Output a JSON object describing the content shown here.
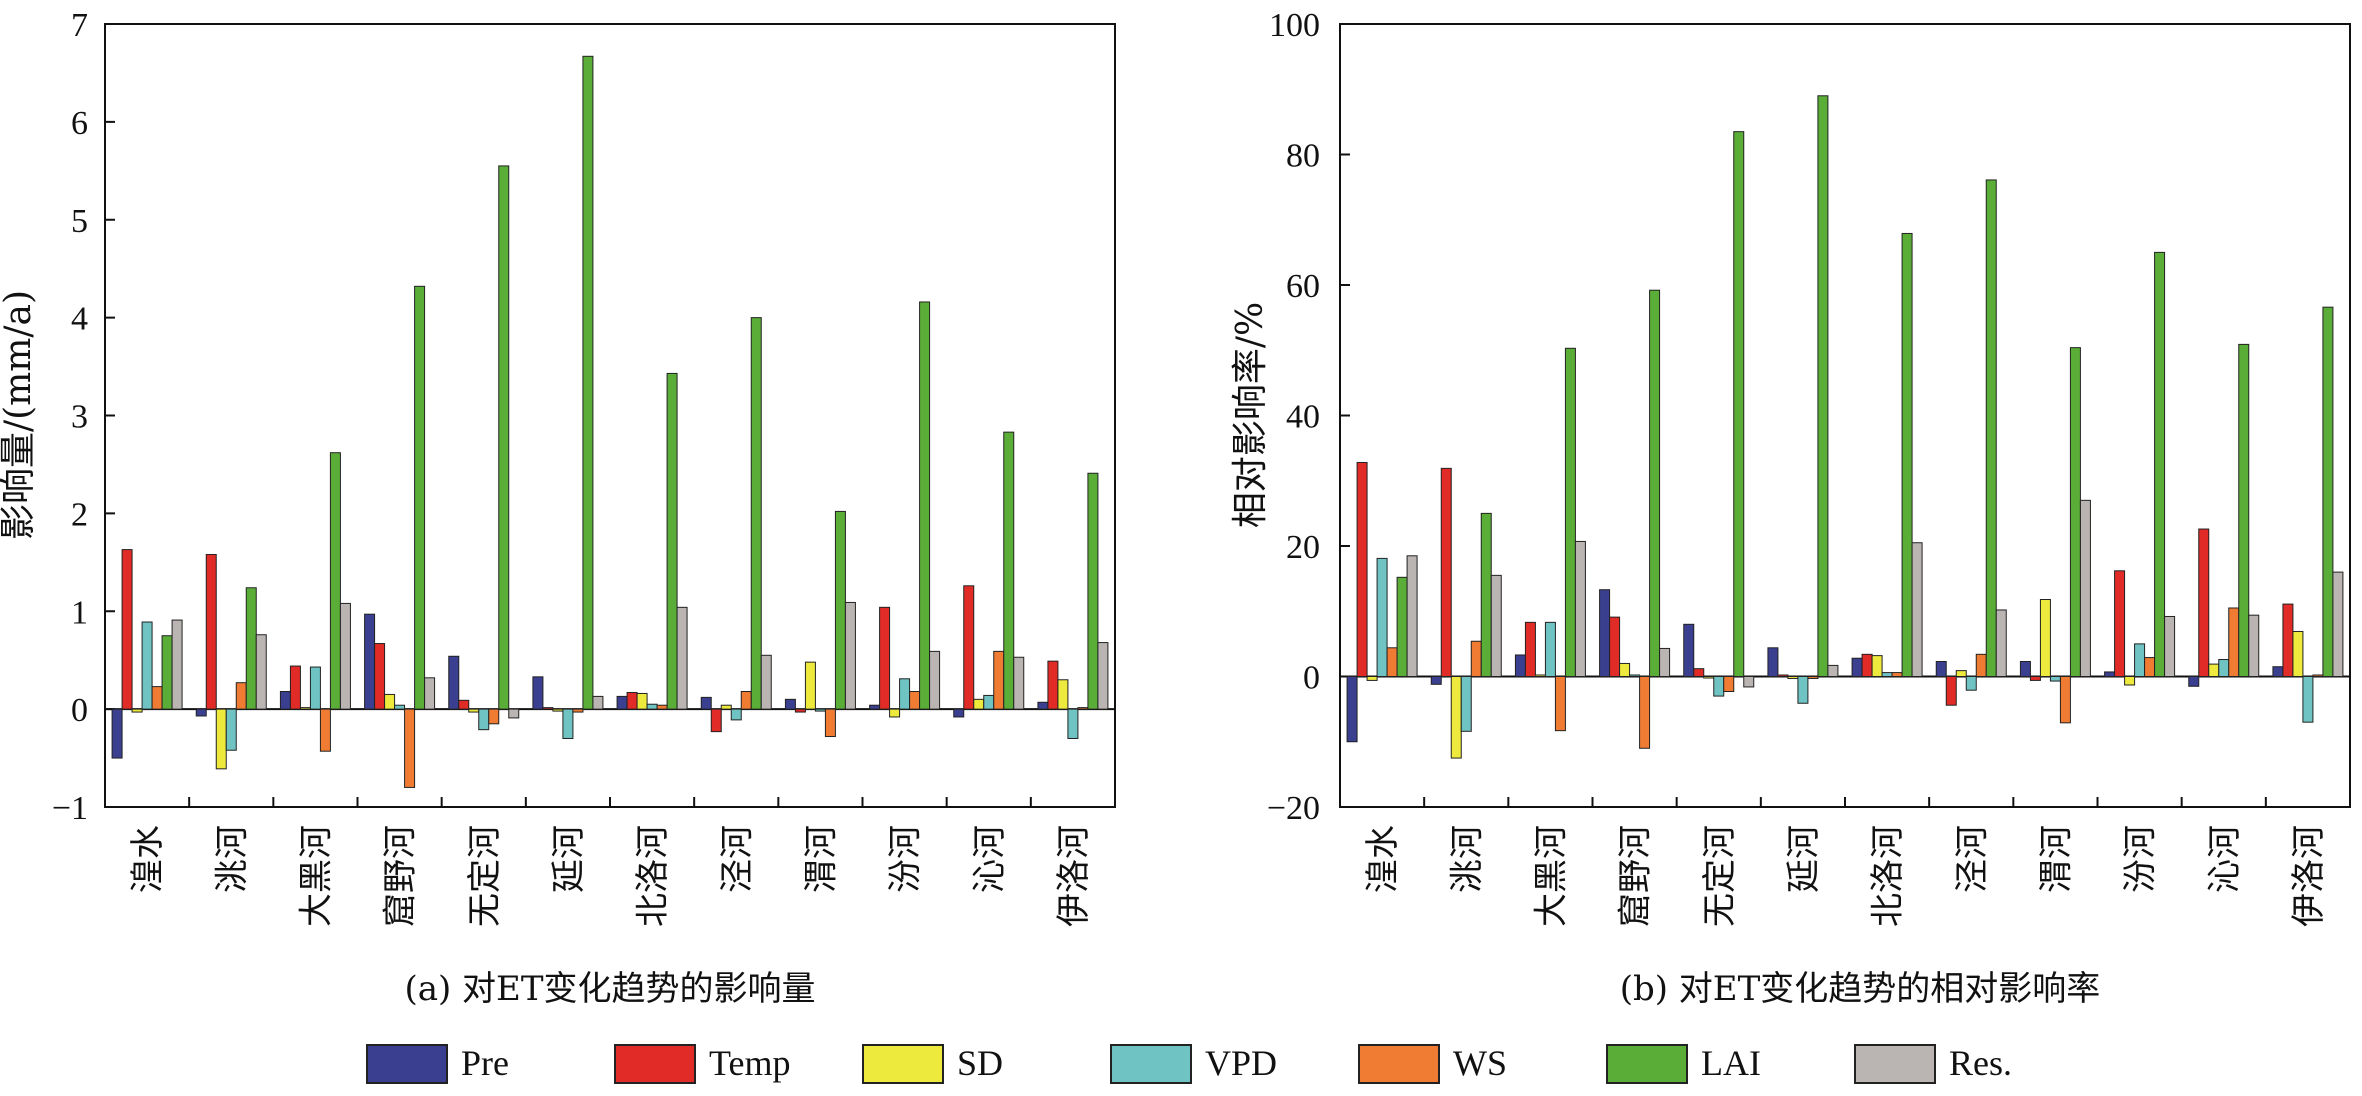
{
  "chart_data": [
    {
      "type": "bar",
      "ylabel": "影响量/(mm/a)",
      "caption": "(a) 对ET变化趋势的影响量",
      "ylim": [
        -1,
        7
      ],
      "yticks": [
        -1,
        0,
        1,
        2,
        3,
        4,
        5,
        6,
        7
      ],
      "categories": [
        "湟水",
        "洮河",
        "大黑河",
        "窟野河",
        "无定河",
        "延河",
        "北洛河",
        "泾河",
        "渭河",
        "汾河",
        "沁河",
        "伊洛河"
      ],
      "series": [
        {
          "name": "Pre",
          "color": "#3a3f8f",
          "values": [
            -0.5,
            -0.07,
            0.18,
            0.97,
            0.54,
            0.33,
            0.13,
            0.12,
            0.1,
            0.04,
            -0.08,
            0.07
          ]
        },
        {
          "name": "Temp",
          "color": "#e02b27",
          "values": [
            1.63,
            1.58,
            0.44,
            0.67,
            0.09,
            0.0,
            0.17,
            -0.23,
            -0.03,
            1.04,
            1.26,
            0.49
          ]
        },
        {
          "name": "SD",
          "color": "#eeea3d",
          "values": [
            -0.03,
            -0.61,
            0.0,
            0.15,
            -0.03,
            -0.02,
            0.16,
            0.04,
            0.48,
            -0.08,
            0.1,
            0.3
          ]
        },
        {
          "name": "VPD",
          "color": "#6fc3c3",
          "values": [
            0.89,
            -0.42,
            0.43,
            0.04,
            -0.21,
            -0.3,
            0.05,
            -0.11,
            -0.02,
            0.31,
            0.14,
            -0.3
          ]
        },
        {
          "name": "WS",
          "color": "#f07c33",
          "values": [
            0.23,
            0.27,
            -0.43,
            -0.8,
            -0.15,
            -0.03,
            0.04,
            0.18,
            -0.28,
            0.18,
            0.59,
            0.0
          ]
        },
        {
          "name": "LAI",
          "color": "#5aad37",
          "values": [
            0.75,
            1.24,
            2.62,
            4.32,
            5.55,
            6.67,
            3.43,
            4.0,
            2.02,
            4.16,
            2.83,
            2.41
          ]
        },
        {
          "name": "Res.",
          "color": "#bab5b3",
          "values": [
            0.91,
            0.76,
            1.08,
            0.32,
            -0.09,
            0.13,
            1.04,
            0.55,
            1.09,
            0.59,
            0.53,
            0.68
          ]
        }
      ]
    },
    {
      "type": "bar",
      "ylabel": "相对影响率/%",
      "caption": "(b) 对ET变化趋势的相对影响率",
      "ylim": [
        -20,
        100
      ],
      "yticks": [
        -20,
        0,
        20,
        40,
        60,
        80,
        100
      ],
      "categories": [
        "湟水",
        "洮河",
        "大黑河",
        "窟野河",
        "无定河",
        "延河",
        "北洛河",
        "泾河",
        "渭河",
        "汾河",
        "沁河",
        "伊洛河"
      ],
      "series": [
        {
          "name": "Pre",
          "color": "#3a3f8f",
          "values": [
            -10,
            -1.2,
            3.3,
            13.3,
            8.0,
            4.4,
            2.8,
            2.3,
            2.3,
            0.7,
            -1.5,
            1.5
          ]
        },
        {
          "name": "Temp",
          "color": "#e02b27",
          "values": [
            32.8,
            31.9,
            8.3,
            9.1,
            1.2,
            0.0,
            3.4,
            -4.4,
            -0.6,
            16.2,
            22.6,
            11.1
          ]
        },
        {
          "name": "SD",
          "color": "#eeea3d",
          "values": [
            -0.6,
            -12.5,
            0.0,
            2.0,
            -0.2,
            -0.3,
            3.2,
            0.9,
            11.8,
            -1.3,
            1.9,
            6.9
          ]
        },
        {
          "name": "VPD",
          "color": "#6fc3c3",
          "values": [
            18.1,
            -8.4,
            8.3,
            0.0,
            -3.0,
            -4.1,
            0.6,
            -2.1,
            -0.7,
            5.0,
            2.6,
            -7.0
          ]
        },
        {
          "name": "WS",
          "color": "#f07c33",
          "values": [
            4.4,
            5.4,
            -8.3,
            -11.0,
            -2.3,
            -0.3,
            0.6,
            3.4,
            -7.1,
            2.9,
            10.5,
            0.0
          ]
        },
        {
          "name": "LAI",
          "color": "#5aad37",
          "values": [
            15.2,
            25.0,
            50.3,
            59.2,
            83.5,
            89.0,
            67.9,
            76.1,
            50.4,
            65.0,
            50.9,
            56.6
          ]
        },
        {
          "name": "Res.",
          "color": "#bab5b3",
          "values": [
            18.5,
            15.5,
            20.7,
            4.3,
            -1.6,
            1.7,
            20.5,
            10.2,
            27.0,
            9.2,
            9.4,
            16.0
          ]
        }
      ]
    }
  ],
  "legend": [
    {
      "name": "Pre",
      "color": "#3a3f8f"
    },
    {
      "name": "Temp",
      "color": "#e02b27"
    },
    {
      "name": "SD",
      "color": "#eeea3d"
    },
    {
      "name": "VPD",
      "color": "#6fc3c3"
    },
    {
      "name": "WS",
      "color": "#f07c33"
    },
    {
      "name": "LAI",
      "color": "#5aad37"
    },
    {
      "name": "Res.",
      "color": "#bab5b3"
    }
  ]
}
